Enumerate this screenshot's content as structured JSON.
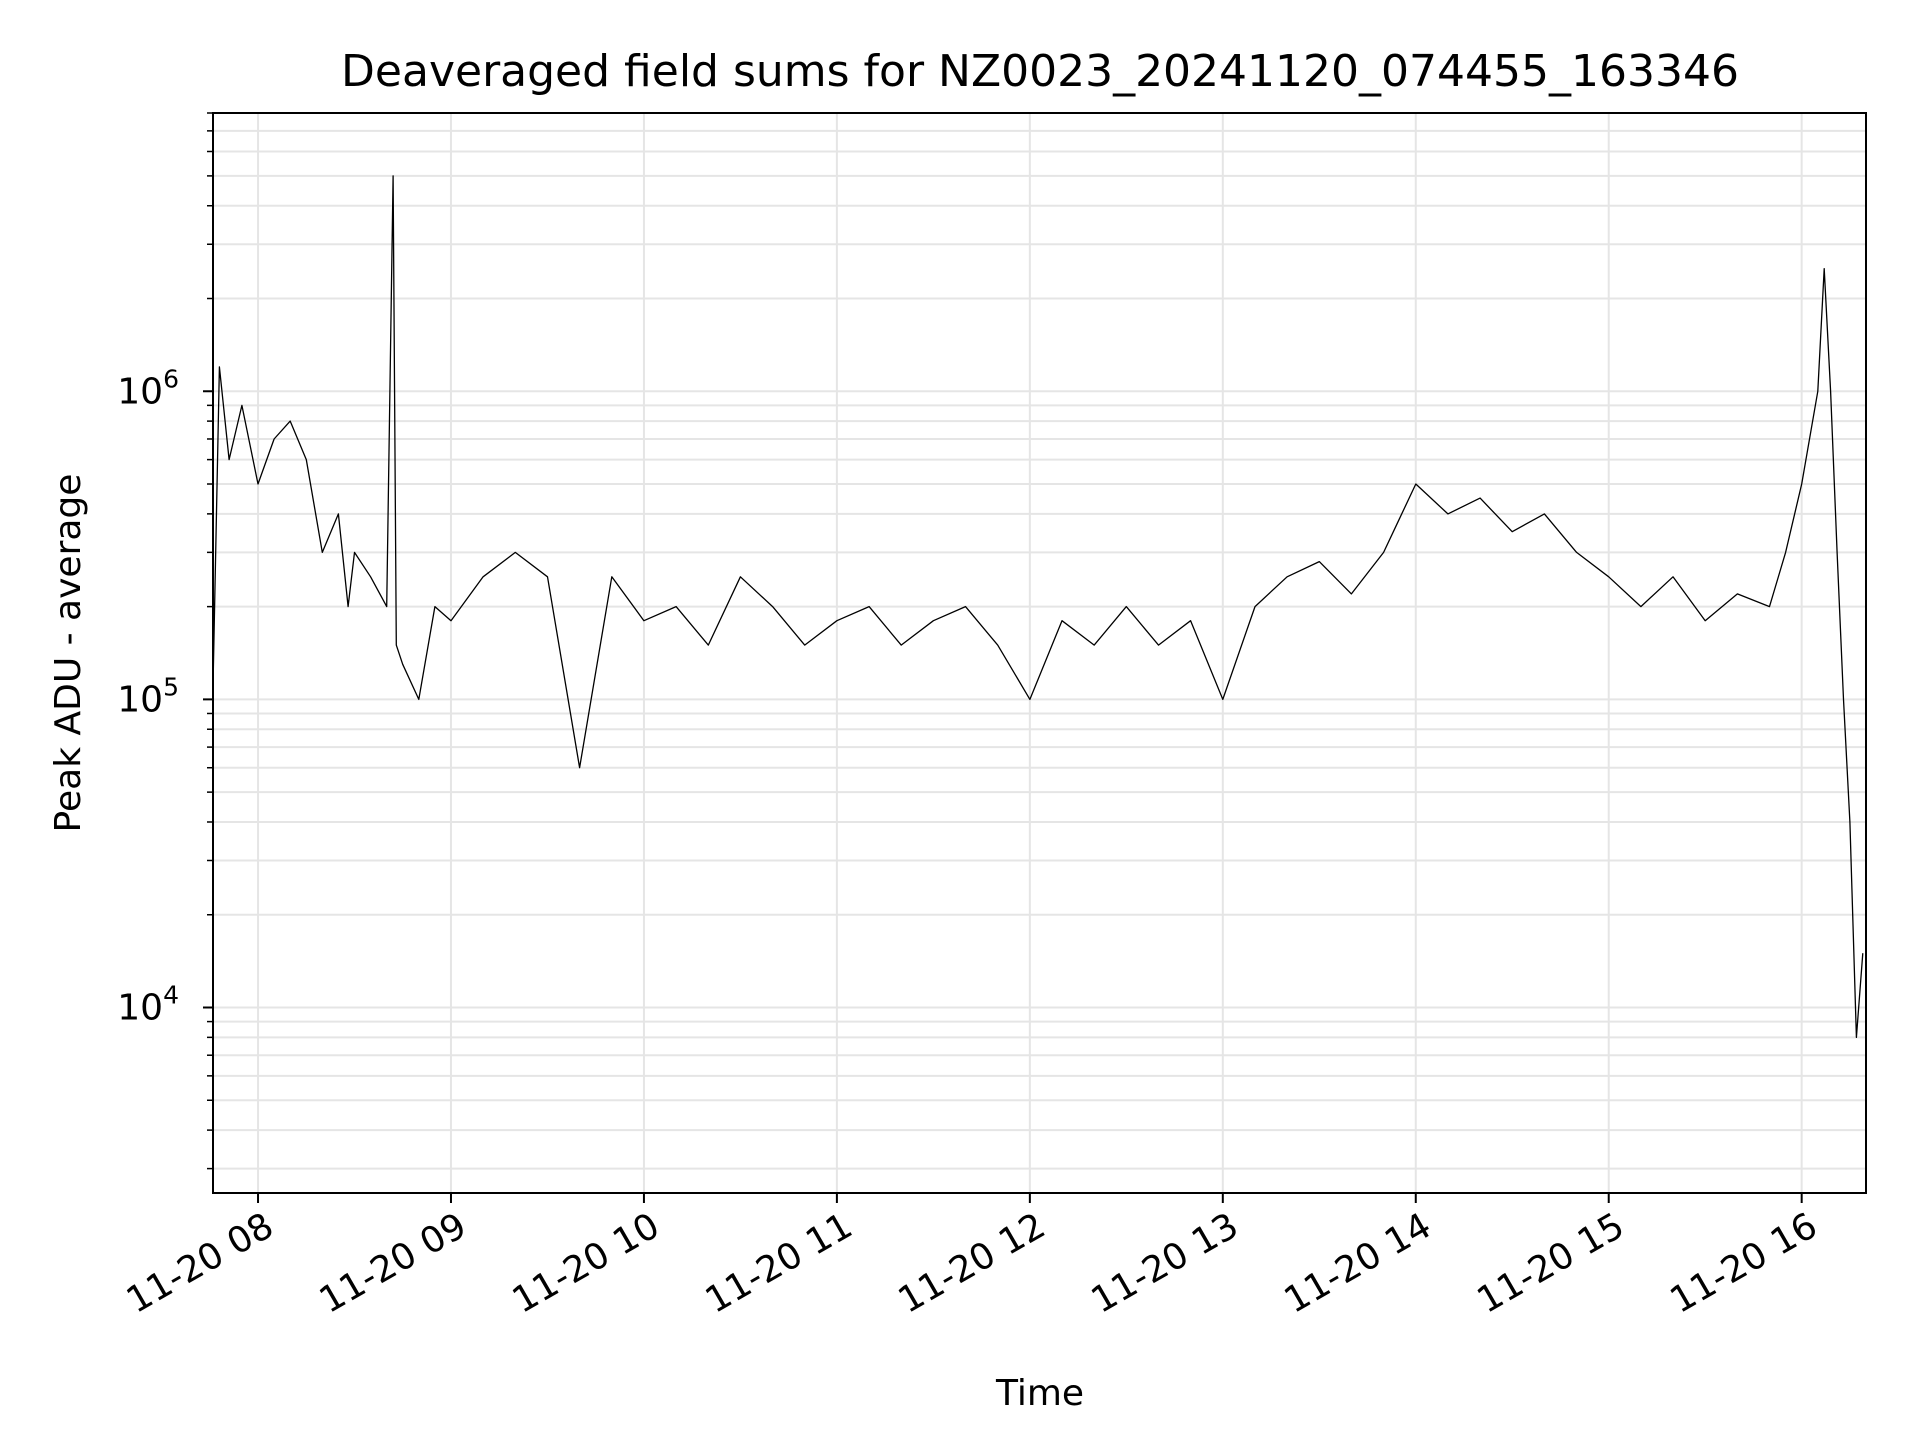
{
  "chart_data": {
    "type": "line",
    "title": "Deaveraged field sums for NZ0023_20241120_074455_163346",
    "xlabel": "Time",
    "ylabel": "Peak ADU - average",
    "y_scale": "log",
    "ylim": [
      2500,
      8000000
    ],
    "xlim": [
      "2024-11-20 07:46",
      "2024-11-20 16:20"
    ],
    "x_tick_labels": [
      "11-20 08",
      "11-20 09",
      "11-20 10",
      "11-20 11",
      "11-20 12",
      "11-20 13",
      "11-20 14",
      "11-20 15",
      "11-20 16"
    ],
    "y_tick_labels": [
      {
        "base": "10",
        "exp": "4",
        "value": 10000
      },
      {
        "base": "10",
        "exp": "5",
        "value": 100000
      },
      {
        "base": "10",
        "exp": "6",
        "value": 1000000
      }
    ],
    "grid": true,
    "line_color": "#000000",
    "series": [
      {
        "x": [
          "2024-11-20 07:46",
          "2024-11-20 07:48",
          "2024-11-20 07:51",
          "2024-11-20 07:55",
          "2024-11-20 08:00",
          "2024-11-20 08:05",
          "2024-11-20 08:10",
          "2024-11-20 08:15",
          "2024-11-20 08:20",
          "2024-11-20 08:25",
          "2024-11-20 08:28",
          "2024-11-20 08:30",
          "2024-11-20 08:35",
          "2024-11-20 08:40",
          "2024-11-20 08:42",
          "2024-11-20 08:43",
          "2024-11-20 08:45",
          "2024-11-20 08:50",
          "2024-11-20 08:55",
          "2024-11-20 09:00",
          "2024-11-20 09:10",
          "2024-11-20 09:20",
          "2024-11-20 09:30",
          "2024-11-20 09:40",
          "2024-11-20 09:50",
          "2024-11-20 10:00",
          "2024-11-20 10:10",
          "2024-11-20 10:20",
          "2024-11-20 10:30",
          "2024-11-20 10:40",
          "2024-11-20 10:50",
          "2024-11-20 11:00",
          "2024-11-20 11:10",
          "2024-11-20 11:20",
          "2024-11-20 11:30",
          "2024-11-20 11:40",
          "2024-11-20 11:50",
          "2024-11-20 12:00",
          "2024-11-20 12:10",
          "2024-11-20 12:20",
          "2024-11-20 12:30",
          "2024-11-20 12:40",
          "2024-11-20 12:50",
          "2024-11-20 13:00",
          "2024-11-20 13:10",
          "2024-11-20 13:20",
          "2024-11-20 13:30",
          "2024-11-20 13:40",
          "2024-11-20 13:50",
          "2024-11-20 14:00",
          "2024-11-20 14:10",
          "2024-11-20 14:20",
          "2024-11-20 14:30",
          "2024-11-20 14:40",
          "2024-11-20 14:50",
          "2024-11-20 15:00",
          "2024-11-20 15:10",
          "2024-11-20 15:20",
          "2024-11-20 15:30",
          "2024-11-20 15:40",
          "2024-11-20 15:50",
          "2024-11-20 15:55",
          "2024-11-20 16:00",
          "2024-11-20 16:05",
          "2024-11-20 16:07",
          "2024-11-20 16:09",
          "2024-11-20 16:11",
          "2024-11-20 16:13",
          "2024-11-20 16:15",
          "2024-11-20 16:17",
          "2024-11-20 16:19"
        ],
        "y": [
          110000,
          1200000,
          600000,
          900000,
          500000,
          700000,
          800000,
          600000,
          300000,
          400000,
          200000,
          300000,
          250000,
          200000,
          5000000,
          150000,
          130000,
          100000,
          200000,
          180000,
          250000,
          300000,
          250000,
          60000,
          250000,
          180000,
          200000,
          150000,
          250000,
          200000,
          150000,
          180000,
          200000,
          150000,
          180000,
          200000,
          150000,
          100000,
          180000,
          150000,
          200000,
          150000,
          180000,
          100000,
          200000,
          250000,
          280000,
          220000,
          300000,
          500000,
          400000,
          450000,
          350000,
          400000,
          300000,
          250000,
          200000,
          250000,
          180000,
          220000,
          200000,
          300000,
          500000,
          1000000,
          2500000,
          1000000,
          300000,
          100000,
          40000,
          8000,
          15000
        ]
      }
    ]
  }
}
